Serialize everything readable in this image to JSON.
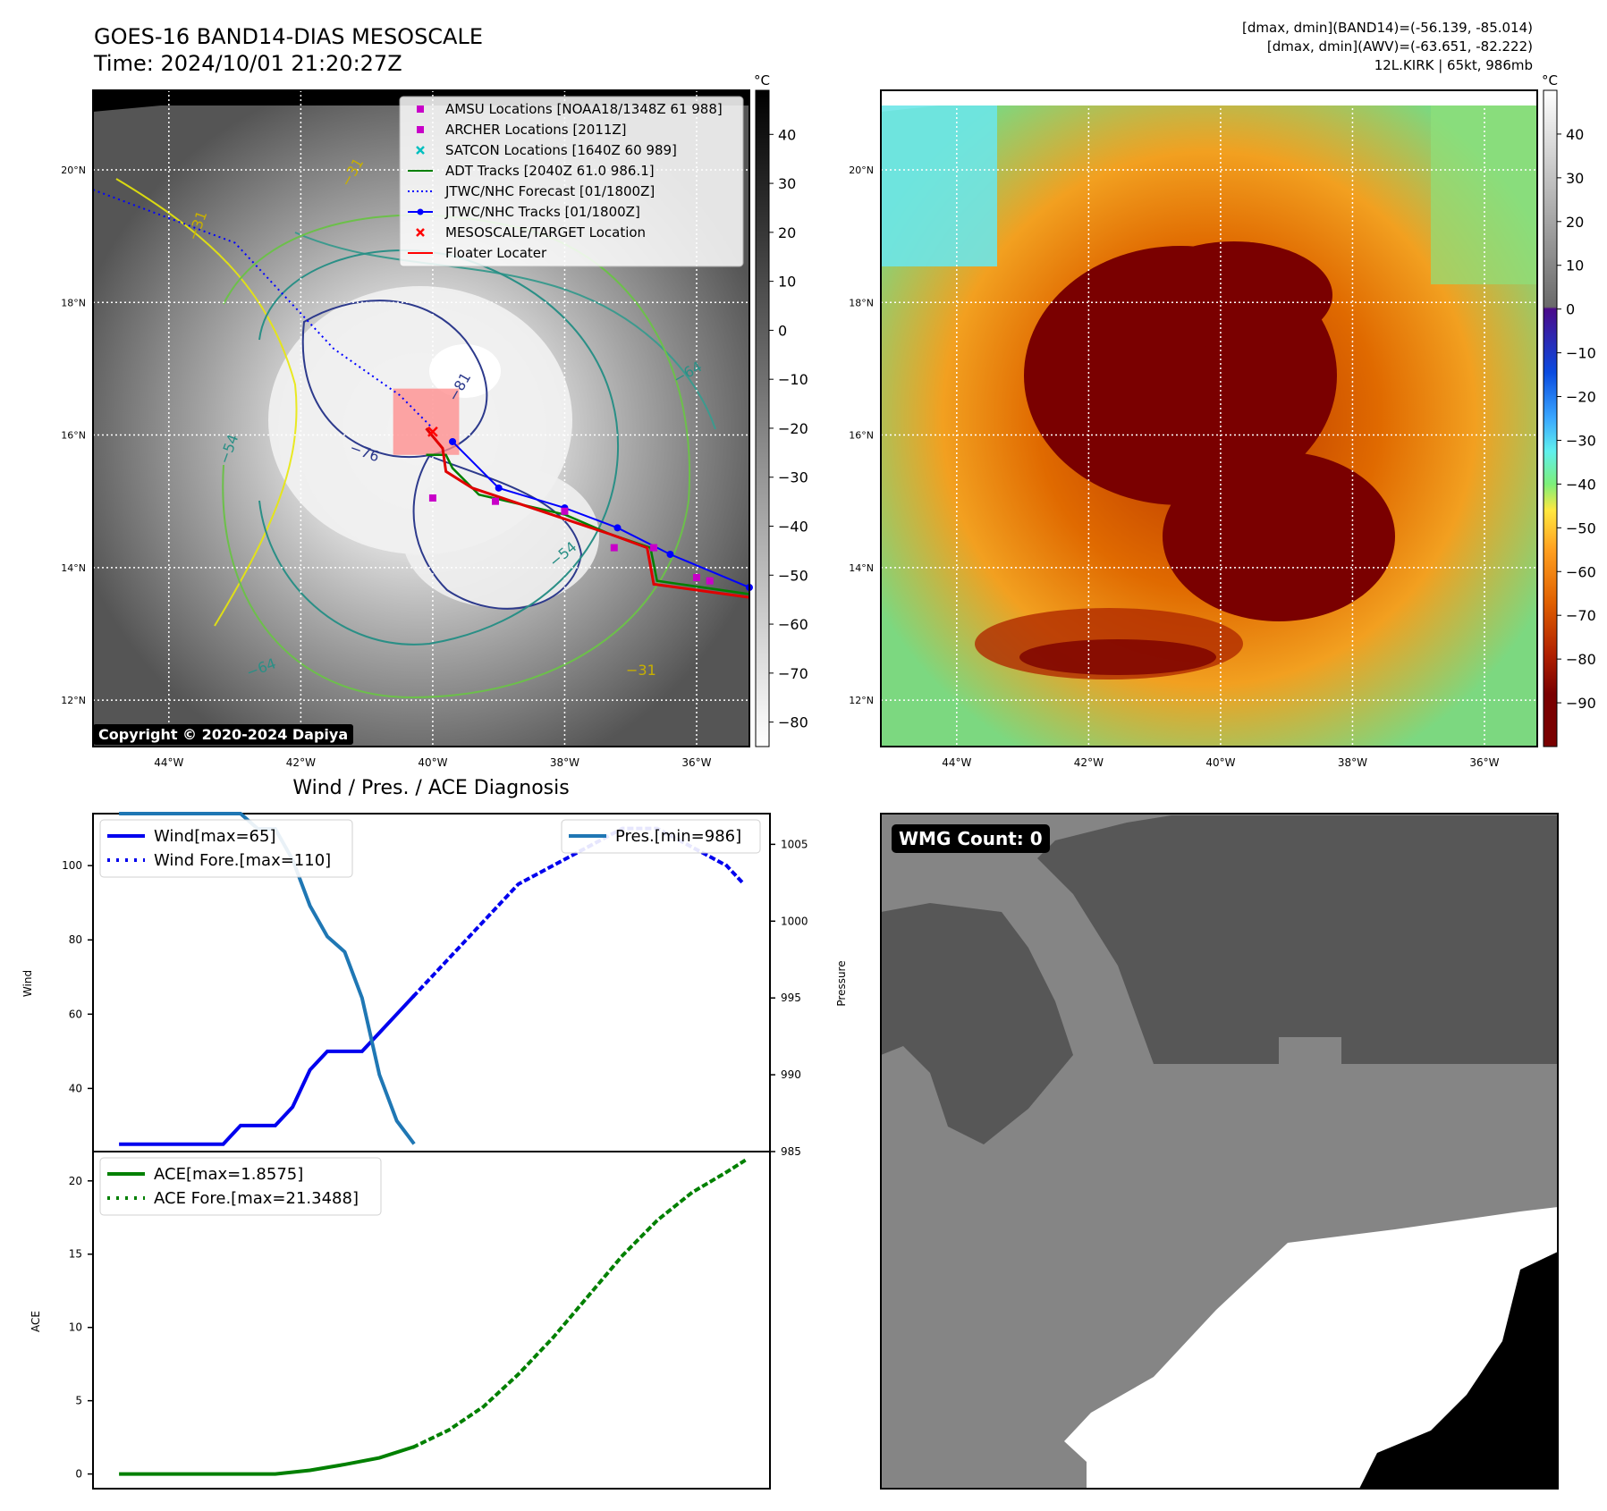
{
  "header": {
    "title_line1": "GOES-16 BAND14-DIAS MESOSCALE",
    "title_line2": "Time: 2024/10/01 21:20:27Z",
    "info_line1": "[dmax, dmin](BAND14)=(-56.139, -85.014)",
    "info_line2": "[dmax, dmin](AWV)=(-63.651, -82.222)",
    "info_line3": "12L.KIRK | 65kt, 986mb"
  },
  "map_axes": {
    "lat_labels": [
      "20°N",
      "18°N",
      "16°N",
      "14°N",
      "12°N"
    ],
    "lat_values": [
      20,
      18,
      16,
      14,
      12
    ],
    "lon_labels": [
      "44°W",
      "42°W",
      "40°W",
      "38°W",
      "36°W"
    ],
    "lon_values": [
      -44,
      -42,
      -40,
      -38,
      -36
    ],
    "lon_range": [
      -45.15,
      -35.2
    ],
    "lat_range": [
      11.3,
      21.2
    ]
  },
  "left_map": {
    "colorbar_unit": "°C",
    "colorbar_ticks": [
      "40",
      "30",
      "20",
      "10",
      "0",
      "−10",
      "−20",
      "−30",
      "−40",
      "−50",
      "−60",
      "−70",
      "−80"
    ],
    "colorbar_values": [
      40,
      30,
      20,
      10,
      0,
      -10,
      -20,
      -30,
      -40,
      -50,
      -60,
      -70,
      -80
    ],
    "colorbar_range": [
      -85,
      49
    ],
    "copyright": "Copyright © 2020-2024 Dapiya",
    "contour_labels": [
      "−31",
      "−31",
      "−31",
      "−54",
      "−54",
      "−64",
      "−64",
      "−76",
      "−81"
    ],
    "legend": [
      {
        "label": "AMSU Locations [NOAA18/1348Z 61 988]",
        "marker": "square",
        "color": "#c800c8"
      },
      {
        "label": "ARCHER Locations [2011Z]",
        "marker": "square",
        "color": "#c800c8"
      },
      {
        "label": "SATCON Locations [1640Z 60 989]",
        "marker": "x",
        "color": "#00bfbf"
      },
      {
        "label": "ADT Tracks [2040Z 61.0 986.1]",
        "marker": "line",
        "color": "#008000"
      },
      {
        "label": "JTWC/NHC Forecast [01/1800Z]",
        "marker": "dotted",
        "color": "#0000ff"
      },
      {
        "label": "JTWC/NHC Tracks [01/1800Z]",
        "marker": "line-dot",
        "color": "#0000ff"
      },
      {
        "label": "MESOSCALE/TARGET Location",
        "marker": "x",
        "color": "#ff0000"
      },
      {
        "label": "Floater Locater",
        "marker": "line",
        "color": "#ff0000"
      }
    ]
  },
  "right_map": {
    "colorbar_unit": "°C",
    "colorbar_ticks": [
      "40",
      "30",
      "20",
      "10",
      "0",
      "−10",
      "−20",
      "−30",
      "−40",
      "−50",
      "−60",
      "−70",
      "−80",
      "−90"
    ],
    "colorbar_values": [
      40,
      30,
      20,
      10,
      0,
      -10,
      -20,
      -30,
      -40,
      -50,
      -60,
      -70,
      -80,
      -90
    ],
    "colorbar_range": [
      -100,
      50
    ]
  },
  "chart_data": [
    {
      "type": "line",
      "title": "Wind / Pres. / ACE Diagnosis",
      "ylabel": "Wind",
      "ylabel_right": "Pressure",
      "ylim": [
        23,
        114
      ],
      "ylim_right": [
        985,
        1007
      ],
      "yticks": [
        40,
        60,
        80,
        100
      ],
      "yticks_right": [
        985,
        990,
        995,
        1000,
        1005
      ],
      "xlim": [
        0,
        39
      ],
      "series": [
        {
          "name": "Wind[max=65]",
          "axis": "left",
          "style": "solid",
          "color": "#0000ee",
          "x": [
            1.5,
            7.5,
            8.5,
            10.5,
            11.5,
            12.5,
            13.5,
            15.5,
            16.5,
            17.5,
            18.5
          ],
          "y": [
            25,
            25,
            30,
            30,
            35,
            45,
            50,
            50,
            55,
            60,
            65
          ]
        },
        {
          "name": "Wind Fore.[max=110]",
          "axis": "left",
          "style": "dotted",
          "color": "#0000ee",
          "x": [
            18.5,
            20.5,
            22.5,
            24.5,
            26.5,
            28.5,
            30.5,
            32.5,
            34.5,
            36.5,
            37.5
          ],
          "y": [
            65,
            75,
            85,
            95,
            100,
            105,
            110,
            110,
            105,
            100,
            95
          ]
        },
        {
          "name": "Pres.[min=986]",
          "axis": "right",
          "style": "solid",
          "color": "#1f77b4",
          "x": [
            1.5,
            8.5,
            9.5,
            10.5,
            11.5,
            12.5,
            13.5,
            14.5,
            15.5,
            16.5,
            17.5,
            18.5
          ],
          "y": [
            1007,
            1007,
            1006,
            1006,
            1004,
            1001,
            999,
            998,
            995,
            990,
            987,
            985.5
          ]
        }
      ]
    },
    {
      "type": "line",
      "ylabel": "ACE",
      "ylim": [
        -1,
        22
      ],
      "yticks": [
        0,
        5,
        10,
        15,
        20
      ],
      "xlim": [
        0,
        39
      ],
      "series": [
        {
          "name": "ACE[max=1.8575]",
          "style": "solid",
          "color": "#008000",
          "x": [
            1.5,
            4.5,
            7.5,
            10.5,
            12.5,
            14.5,
            16.5,
            18.5
          ],
          "y": [
            0,
            0,
            0,
            0,
            0.25,
            0.65,
            1.1,
            1.86
          ]
        },
        {
          "name": "ACE Fore.[max=21.3488]",
          "style": "dotted",
          "color": "#008000",
          "x": [
            18.5,
            20.5,
            22.5,
            24.5,
            26.5,
            28.5,
            30.5,
            32.5,
            34.5,
            36.5,
            37.5
          ],
          "y": [
            1.86,
            3.0,
            4.6,
            6.8,
            9.3,
            12.1,
            14.9,
            17.3,
            19.2,
            20.6,
            21.35
          ]
        }
      ]
    }
  ],
  "wmg": {
    "label": "WMG Count: 0"
  }
}
